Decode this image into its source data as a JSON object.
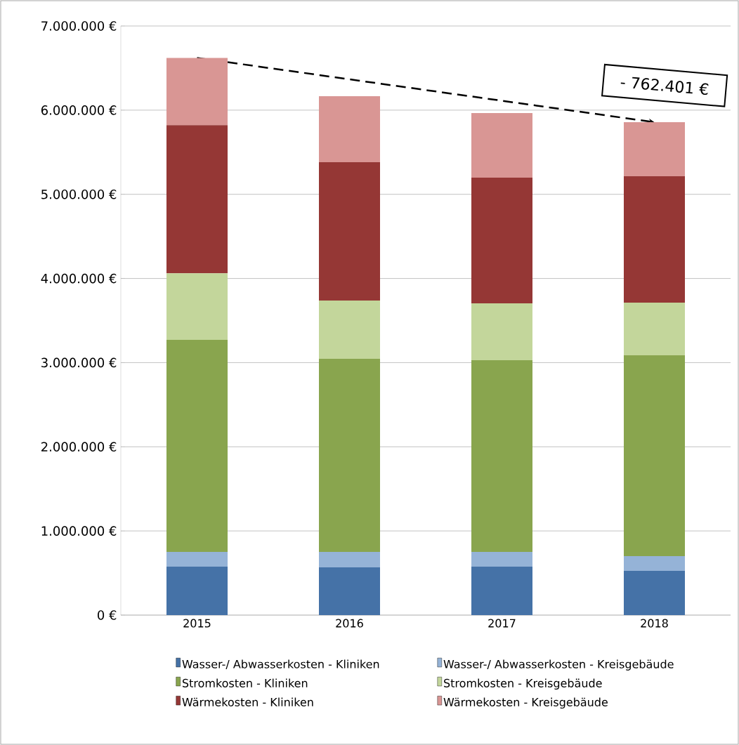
{
  "chart_data": {
    "type": "bar",
    "stacked": true,
    "categories": [
      "2015",
      "2016",
      "2017",
      "2018"
    ],
    "series": [
      {
        "name": "Wasser-/ Abwasserkosten - Kliniken",
        "color": "#4572a7",
        "values": [
          576000,
          567000,
          576000,
          526000
        ]
      },
      {
        "name": "Wasser-/ Abwasserkosten - Kreisgebäude",
        "color": "#95b3d7",
        "values": [
          175000,
          183000,
          174000,
          175000
        ]
      },
      {
        "name": "Stromkosten - Kliniken",
        "color": "#89a54e",
        "values": [
          2520000,
          2295000,
          2279000,
          2386000
        ]
      },
      {
        "name": "Stromkosten - Kreisgebäude",
        "color": "#c3d69b",
        "values": [
          790000,
          693000,
          675000,
          626000
        ]
      },
      {
        "name": "Wärmekosten - Kliniken",
        "color": "#953735",
        "values": [
          1760000,
          1643000,
          1494000,
          1501000
        ]
      },
      {
        "name": "Wärmekosten - Kreisgebäude",
        "color": "#d99694",
        "values": [
          800000,
          785000,
          767000,
          643000
        ]
      }
    ],
    "ylim": [
      0,
      7000000
    ],
    "yticks": [
      {
        "value": 0,
        "label": "0 €"
      },
      {
        "value": 1000000,
        "label": "1.000.000 €"
      },
      {
        "value": 2000000,
        "label": "2.000.000 €"
      },
      {
        "value": 3000000,
        "label": "3.000.000 €"
      },
      {
        "value": 4000000,
        "label": "4.000.000 €"
      },
      {
        "value": 5000000,
        "label": "5.000.000 €"
      },
      {
        "value": 6000000,
        "label": "6.000.000 €"
      },
      {
        "value": 7000000,
        "label": "7.000.000 €"
      }
    ],
    "grid": "y",
    "legend": "bottom",
    "annotations": [
      {
        "text": "- 762.401 €",
        "x": "2018",
        "y": 5857000
      }
    ]
  }
}
